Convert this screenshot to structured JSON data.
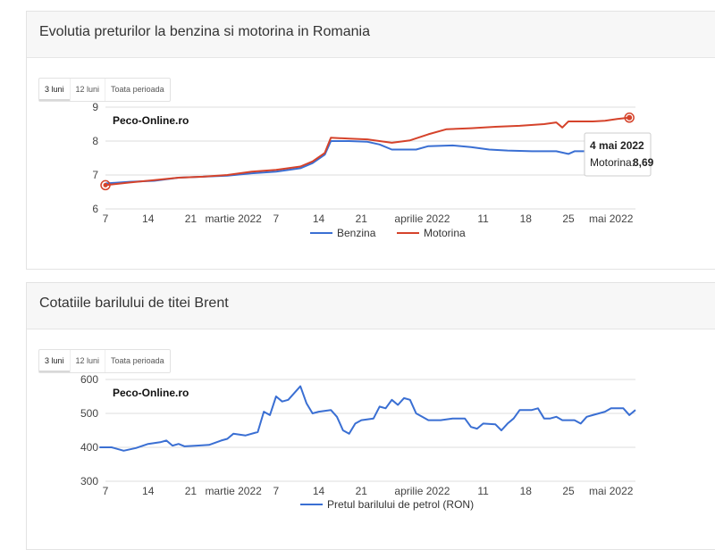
{
  "fuel": {
    "title": "Evolutia preturilor la benzina si motorina in Romania",
    "tabs": [
      "3 luni",
      "12 luni",
      "Toata perioada"
    ],
    "watermark": "Peco-Online.ro",
    "tooltip": {
      "date": "4 mai 2022",
      "label": "Motorina:",
      "value": "8,69"
    }
  },
  "brent": {
    "title": "Cotatiile barilului de titei Brent",
    "tabs": [
      "3 luni",
      "12 luni",
      "Toata perioada"
    ],
    "watermark": "Peco-Online.ro"
  },
  "colors": {
    "benzina": "#3a6fd3",
    "motorina": "#d5432b",
    "brent": "#3a6fd3",
    "grid": "#dedede"
  },
  "chart_data": [
    {
      "type": "line",
      "title": "Evolutia preturilor la benzina si motorina in Romania",
      "x_ticks": [
        "7",
        "14",
        "21",
        "martie 2022",
        "7",
        "14",
        "21",
        "aprilie 2022",
        "11",
        "18",
        "25",
        "mai 2022"
      ],
      "x_tick_days": [
        0,
        7,
        14,
        21,
        28,
        35,
        42,
        52,
        62,
        69,
        76,
        83
      ],
      "y_ticks": [
        "6",
        "7",
        "8",
        "9"
      ],
      "ylim": [
        6,
        9
      ],
      "xlim": [
        0,
        87
      ],
      "legend_position": "bottom",
      "series": [
        {
          "name": "Benzina",
          "points": [
            [
              0,
              6.75
            ],
            [
              4,
              6.8
            ],
            [
              8,
              6.83
            ],
            [
              12,
              6.92
            ],
            [
              16,
              6.95
            ],
            [
              20,
              6.98
            ],
            [
              24,
              7.05
            ],
            [
              28,
              7.1
            ],
            [
              32,
              7.2
            ],
            [
              34,
              7.35
            ],
            [
              36,
              7.6
            ],
            [
              37,
              8.0
            ],
            [
              40,
              8.0
            ],
            [
              43,
              7.98
            ],
            [
              45,
              7.9
            ],
            [
              47,
              7.75
            ],
            [
              51,
              7.75
            ],
            [
              53,
              7.85
            ],
            [
              57,
              7.87
            ],
            [
              60,
              7.82
            ],
            [
              63,
              7.75
            ],
            [
              66,
              7.72
            ],
            [
              70,
              7.7
            ],
            [
              74,
              7.7
            ],
            [
              76,
              7.62
            ],
            [
              77,
              7.7
            ],
            [
              80,
              7.7
            ],
            [
              83,
              7.7
            ],
            [
              86,
              7.7
            ]
          ]
        },
        {
          "name": "Motorina",
          "points": [
            [
              0,
              6.7
            ],
            [
              4,
              6.78
            ],
            [
              8,
              6.85
            ],
            [
              12,
              6.92
            ],
            [
              16,
              6.95
            ],
            [
              20,
              7.0
            ],
            [
              24,
              7.1
            ],
            [
              28,
              7.15
            ],
            [
              32,
              7.25
            ],
            [
              34,
              7.4
            ],
            [
              36,
              7.65
            ],
            [
              37,
              8.1
            ],
            [
              40,
              8.07
            ],
            [
              43,
              8.05
            ],
            [
              45,
              8.0
            ],
            [
              47,
              7.95
            ],
            [
              50,
              8.02
            ],
            [
              53,
              8.2
            ],
            [
              56,
              8.35
            ],
            [
              60,
              8.38
            ],
            [
              64,
              8.42
            ],
            [
              68,
              8.45
            ],
            [
              72,
              8.5
            ],
            [
              74,
              8.55
            ],
            [
              75,
              8.4
            ],
            [
              76,
              8.58
            ],
            [
              80,
              8.58
            ],
            [
              82,
              8.6
            ],
            [
              84,
              8.65
            ],
            [
              86,
              8.69
            ]
          ]
        }
      ]
    },
    {
      "type": "line",
      "title": "Cotatiile barilului de titei Brent",
      "x_ticks": [
        "7",
        "14",
        "21",
        "martie 2022",
        "7",
        "14",
        "21",
        "aprilie 2022",
        "11",
        "18",
        "25",
        "mai 2022"
      ],
      "x_tick_days": [
        0,
        7,
        14,
        21,
        28,
        35,
        42,
        52,
        62,
        69,
        76,
        83
      ],
      "y_ticks": [
        "300",
        "400",
        "500",
        "600"
      ],
      "ylim": [
        300,
        600
      ],
      "xlim": [
        0,
        87
      ],
      "legend_position": "bottom",
      "series": [
        {
          "name": "Pretul barilului de petrol (RON)",
          "points": [
            [
              -1,
              400
            ],
            [
              1,
              400
            ],
            [
              3,
              390
            ],
            [
              5,
              398
            ],
            [
              7,
              410
            ],
            [
              9,
              415
            ],
            [
              10,
              420
            ],
            [
              11,
              405
            ],
            [
              12,
              410
            ],
            [
              13,
              403
            ],
            [
              15,
              405
            ],
            [
              17,
              407
            ],
            [
              19,
              420
            ],
            [
              20,
              425
            ],
            [
              21,
              440
            ],
            [
              23,
              435
            ],
            [
              25,
              445
            ],
            [
              26,
              505
            ],
            [
              27,
              495
            ],
            [
              28,
              550
            ],
            [
              29,
              535
            ],
            [
              30,
              540
            ],
            [
              31,
              560
            ],
            [
              32,
              580
            ],
            [
              33,
              530
            ],
            [
              34,
              500
            ],
            [
              35,
              505
            ],
            [
              37,
              510
            ],
            [
              38,
              490
            ],
            [
              39,
              450
            ],
            [
              40,
              440
            ],
            [
              41,
              470
            ],
            [
              42,
              480
            ],
            [
              44,
              485
            ],
            [
              45,
              520
            ],
            [
              46,
              515
            ],
            [
              47,
              540
            ],
            [
              48,
              525
            ],
            [
              49,
              545
            ],
            [
              50,
              540
            ],
            [
              51,
              500
            ],
            [
              52,
              490
            ],
            [
              53,
              480
            ],
            [
              55,
              480
            ],
            [
              57,
              485
            ],
            [
              59,
              485
            ],
            [
              60,
              460
            ],
            [
              61,
              455
            ],
            [
              62,
              470
            ],
            [
              64,
              468
            ],
            [
              65,
              450
            ],
            [
              66,
              470
            ],
            [
              67,
              485
            ],
            [
              68,
              510
            ],
            [
              70,
              510
            ],
            [
              71,
              515
            ],
            [
              72,
              485
            ],
            [
              73,
              485
            ],
            [
              74,
              490
            ],
            [
              75,
              480
            ],
            [
              77,
              480
            ],
            [
              78,
              470
            ],
            [
              79,
              490
            ],
            [
              80,
              495
            ],
            [
              82,
              505
            ],
            [
              83,
              515
            ],
            [
              85,
              515
            ],
            [
              86,
              495
            ],
            [
              87,
              510
            ]
          ]
        }
      ]
    }
  ]
}
